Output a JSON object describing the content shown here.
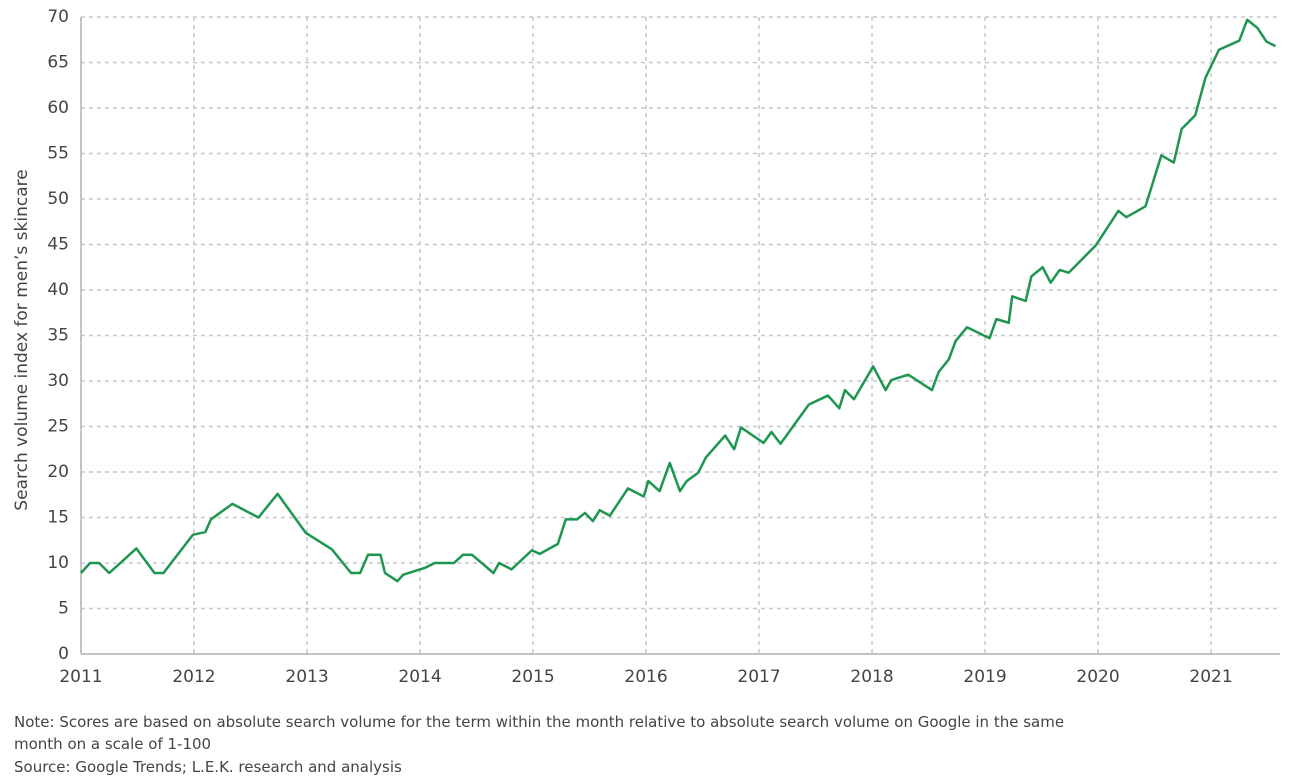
{
  "chart_data": {
    "type": "line",
    "y_label": "Search volume index for men’s skincare",
    "note": [
      "Note: Scores are based on absolute search volume for the term within the month relative to absolute search volume on Google in the same",
      "month on a scale of 1-100"
    ],
    "source": "Source: Google Trends; L.E.K. research and analysis",
    "color": "#1e9650",
    "grid": true,
    "xlim": [
      2011,
      2021.61
    ],
    "xticks": [
      2011,
      2012,
      2013,
      2014,
      2015,
      2016,
      2017,
      2018,
      2019,
      2020,
      2021
    ],
    "ylim": [
      0,
      70
    ],
    "yticks": [
      0,
      5,
      10,
      15,
      20,
      25,
      30,
      35,
      40,
      45,
      50,
      55,
      60,
      65,
      70
    ],
    "x": [
      2011.0,
      2011.08,
      2011.16,
      2011.25,
      2011.49,
      2011.65,
      2011.73,
      2011.99,
      2012.1,
      2012.15,
      2012.34,
      2012.57,
      2012.74,
      2012.99,
      2013.22,
      2013.39,
      2013.47,
      2013.54,
      2013.65,
      2013.69,
      2013.8,
      2013.85,
      2014.05,
      2014.13,
      2014.3,
      2014.38,
      2014.46,
      2014.65,
      2014.7,
      2014.81,
      2014.99,
      2015.06,
      2015.22,
      2015.29,
      2015.39,
      2015.46,
      2015.53,
      2015.59,
      2015.68,
      2015.84,
      2015.98,
      2016.02,
      2016.12,
      2016.21,
      2016.3,
      2016.36,
      2016.46,
      2016.53,
      2016.7,
      2016.78,
      2016.84,
      2017.04,
      2017.11,
      2017.19,
      2017.44,
      2017.61,
      2017.71,
      2017.76,
      2017.84,
      2018.01,
      2018.12,
      2018.17,
      2018.32,
      2018.53,
      2018.59,
      2018.68,
      2018.74,
      2018.84,
      2019.04,
      2019.1,
      2019.21,
      2019.24,
      2019.36,
      2019.41,
      2019.51,
      2019.58,
      2019.66,
      2019.74,
      2019.98,
      2020.18,
      2020.25,
      2020.42,
      2020.56,
      2020.67,
      2020.74,
      2020.86,
      2020.95,
      2021.07,
      2021.25,
      2021.32,
      2021.41,
      2021.49,
      2021.57
    ],
    "values": [
      8.9,
      10,
      10,
      8.9,
      11.6,
      8.9,
      8.9,
      13.1,
      13.4,
      14.8,
      16.5,
      15,
      17.6,
      13.3,
      11.5,
      8.9,
      8.9,
      10.9,
      10.9,
      8.9,
      8,
      8.7,
      9.5,
      10,
      10,
      10.9,
      10.9,
      8.9,
      10,
      9.3,
      11.4,
      11,
      12.1,
      14.8,
      14.8,
      15.5,
      14.6,
      15.8,
      15.2,
      18.2,
      17.3,
      19,
      17.9,
      21,
      17.9,
      19,
      19.9,
      21.6,
      24,
      22.5,
      24.9,
      23.2,
      24.4,
      23.1,
      27.4,
      28.4,
      27,
      29,
      28,
      31.6,
      29,
      30.1,
      30.7,
      29,
      31,
      32.4,
      34.4,
      35.9,
      34.7,
      36.8,
      36.4,
      39.3,
      38.8,
      41.5,
      42.5,
      40.8,
      42.2,
      41.9,
      44.9,
      48.7,
      48,
      49.2,
      54.8,
      54,
      57.7,
      59.2,
      63.3,
      66.4,
      67.4,
      69.7,
      68.8,
      67.3,
      66.8
    ]
  }
}
